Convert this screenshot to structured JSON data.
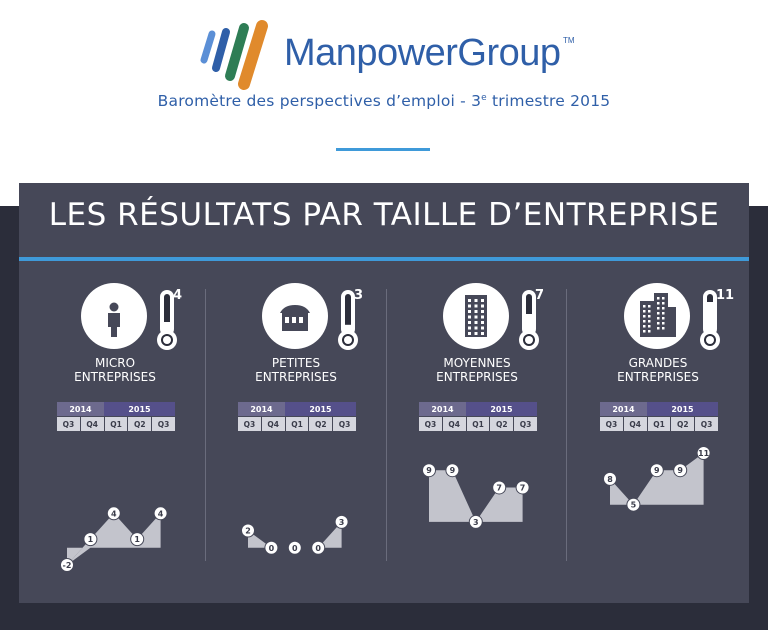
{
  "header": {
    "brand": "ManpowerGroup",
    "trademark": "TM",
    "subtitle_before": "Baromètre des perspectives d’emploi - 3",
    "subtitle_sup": "e",
    "subtitle_after": " trimestre 2015",
    "logo_colors": [
      "#5b8fd6",
      "#2f5fa8",
      "#2e7d55",
      "#e08a2c"
    ]
  },
  "panel": {
    "title": "LES RÉSULTATS PAR TAILLE D’ENTREPRISE",
    "accent_color": "#3f9ad9",
    "background_color": "#464858"
  },
  "chart_data": [
    {
      "type": "area",
      "category_line1": "MICRO",
      "category_line2": "ENTREPRISES",
      "icon": "person-icon",
      "thermometer_value": "4",
      "year_groups": [
        {
          "label": "2014",
          "span": 2
        },
        {
          "label": "2015",
          "span": 3
        }
      ],
      "categories": [
        "Q3",
        "Q4",
        "Q1",
        "Q2",
        "Q3"
      ],
      "values": [
        -2,
        1,
        4,
        1,
        4
      ],
      "ylim": [
        -2,
        11
      ]
    },
    {
      "type": "area",
      "category_line1": "PETITES",
      "category_line2": "ENTREPRISES",
      "icon": "shop-icon",
      "thermometer_value": "3",
      "year_groups": [
        {
          "label": "2014",
          "span": 2
        },
        {
          "label": "2015",
          "span": 3
        }
      ],
      "categories": [
        "Q3",
        "Q4",
        "Q1",
        "Q2",
        "Q3"
      ],
      "values": [
        2,
        0,
        0,
        0,
        3
      ],
      "ylim": [
        -2,
        11
      ]
    },
    {
      "type": "area",
      "category_line1": "MOYENNES",
      "category_line2": "ENTREPRISES",
      "icon": "building-icon",
      "thermometer_value": "7",
      "year_groups": [
        {
          "label": "2014",
          "span": 2
        },
        {
          "label": "2015",
          "span": 3
        }
      ],
      "categories": [
        "Q3",
        "Q4",
        "Q1",
        "Q2",
        "Q3"
      ],
      "values": [
        9,
        9,
        3,
        7,
        7
      ],
      "ylim": [
        -2,
        11
      ]
    },
    {
      "type": "area",
      "category_line1": "GRANDES",
      "category_line2": "ENTREPRISES",
      "icon": "skyscrapers-icon",
      "thermometer_value": "11",
      "year_groups": [
        {
          "label": "2014",
          "span": 2
        },
        {
          "label": "2015",
          "span": 3
        }
      ],
      "categories": [
        "Q3",
        "Q4",
        "Q1",
        "Q2",
        "Q3"
      ],
      "values": [
        8,
        5,
        9,
        9,
        11
      ],
      "ylim": [
        -2,
        11
      ]
    }
  ]
}
